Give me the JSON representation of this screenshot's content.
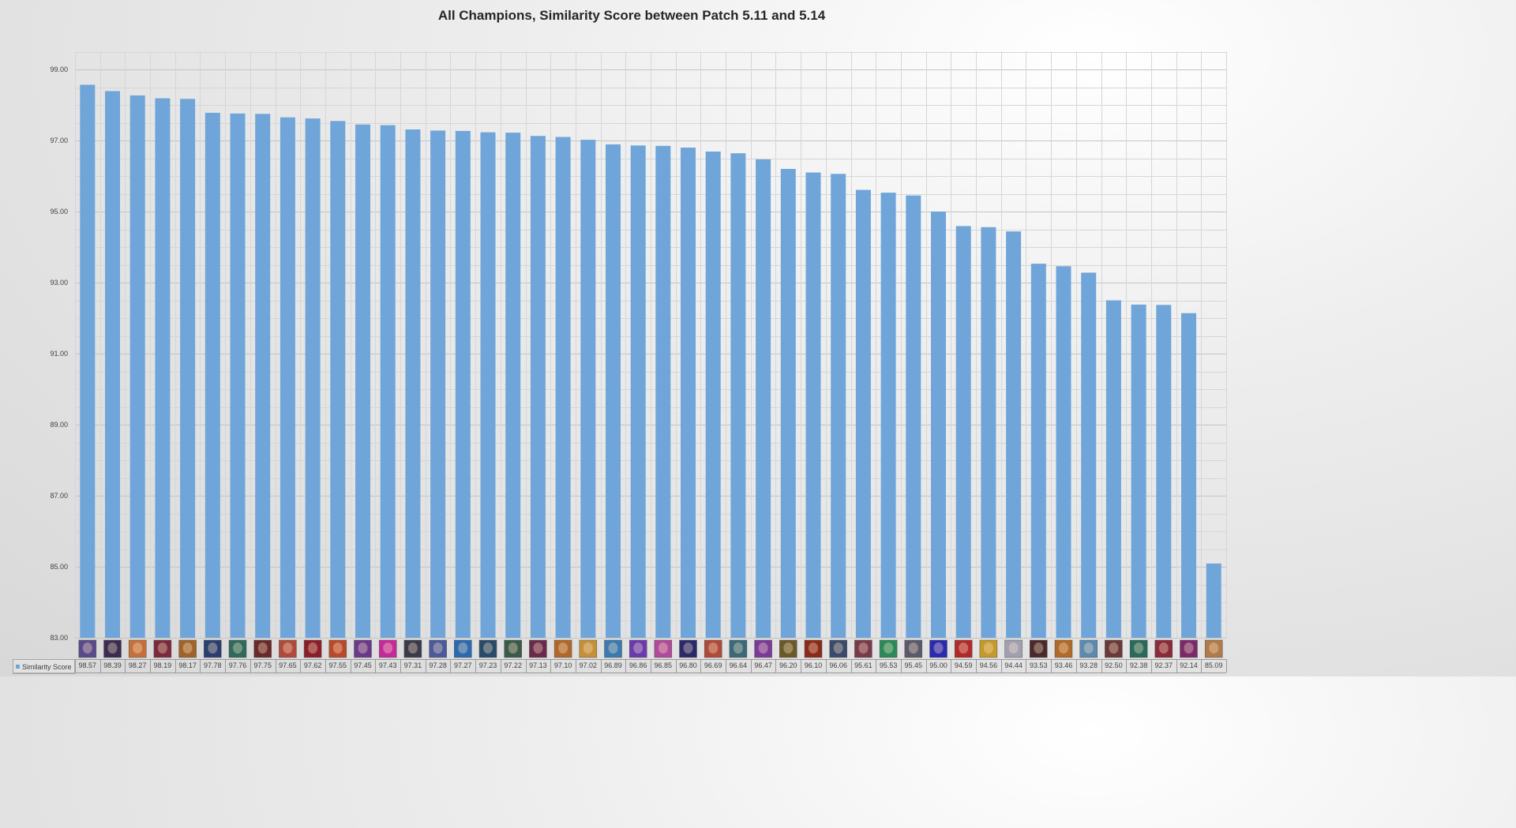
{
  "chart_data": {
    "type": "bar",
    "title": "All Champions, Similarity Score between Patch 5.11 and 5.14",
    "xlabel": "",
    "ylabel": "",
    "ylim": [
      83,
      100
    ],
    "yticks": [
      "83.00",
      "85.00",
      "87.00",
      "89.00",
      "91.00",
      "93.00",
      "95.00",
      "97.00",
      "99.00"
    ],
    "grid": "major and minor gridlines, horizontal and vertical",
    "legend_position": "bottom-left (in data table)",
    "bar_color": "#6fa5d9",
    "category_icons": "champion portrait icon per bar",
    "series": [
      {
        "name": "Similarity Score",
        "values": [
          98.57,
          98.39,
          98.27,
          98.19,
          98.17,
          97.78,
          97.76,
          97.75,
          97.65,
          97.62,
          97.55,
          97.45,
          97.43,
          97.31,
          97.28,
          97.27,
          97.23,
          97.22,
          97.13,
          97.1,
          97.02,
          96.89,
          96.86,
          96.85,
          96.8,
          96.69,
          96.64,
          96.47,
          96.2,
          96.1,
          96.06,
          95.61,
          95.53,
          95.45,
          95.0,
          94.59,
          94.56,
          94.44,
          93.53,
          93.46,
          93.28,
          92.5,
          92.38,
          92.37,
          92.14,
          85.09
        ]
      }
    ],
    "value_labels": [
      "98.57",
      "98.39",
      "98.27",
      "98.19",
      "98.17",
      "97.78",
      "97.76",
      "97.75",
      "97.65",
      "97.62",
      "97.55",
      "97.45",
      "97.43",
      "97.31",
      "97.28",
      "97.27",
      "97.23",
      "97.22",
      "97.13",
      "97.10",
      "97.02",
      "96.89",
      "96.86",
      "96.85",
      "96.80",
      "96.69",
      "96.64",
      "96.47",
      "96.20",
      "96.10",
      "96.06",
      "95.61",
      "95.53",
      "95.45",
      "95.00",
      "94.59",
      "94.56",
      "94.44",
      "93.53",
      "93.46",
      "93.28",
      "92.50",
      "92.38",
      "92.37",
      "92.14",
      "85.09"
    ]
  }
}
